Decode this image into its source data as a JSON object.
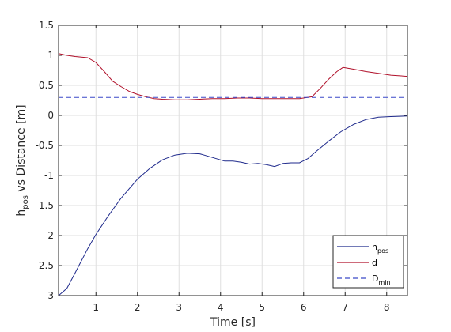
{
  "chart_data": {
    "type": "line",
    "title": "",
    "xlabel": "Time [s]",
    "ylabel_main": "h",
    "ylabel_sub": "pos",
    "ylabel_rest": " vs Distance [m]",
    "xlim": [
      0.1,
      8.5
    ],
    "ylim": [
      -3,
      1.5
    ],
    "xticks": [
      1,
      2,
      3,
      4,
      5,
      6,
      7,
      8
    ],
    "xtick_labels": [
      "1",
      "2",
      "3",
      "4",
      "5",
      "6",
      "7",
      "8"
    ],
    "yticks": [
      1.5,
      1,
      0.5,
      0,
      -0.5,
      -1,
      -1.5,
      -2,
      -2.5,
      -3
    ],
    "ytick_labels": [
      "1.5",
      "1",
      "0.5",
      "0",
      "-0.5",
      "-1",
      "-1.5",
      "-2",
      "-2.5",
      "-3"
    ],
    "grid": true,
    "legend_position": "bottom-right",
    "series": [
      {
        "name": "h",
        "name_sub": "pos",
        "color": "#1f2a8c",
        "style": "solid",
        "x": [
          0.1,
          0.3,
          0.5,
          0.8,
          1.0,
          1.3,
          1.6,
          2.0,
          2.3,
          2.6,
          2.9,
          3.2,
          3.5,
          3.8,
          4.1,
          4.3,
          4.5,
          4.7,
          4.9,
          5.1,
          5.3,
          5.5,
          5.7,
          5.9,
          6.1,
          6.3,
          6.6,
          6.9,
          7.2,
          7.5,
          7.8,
          8.1,
          8.5
        ],
        "y": [
          -3.0,
          -2.88,
          -2.62,
          -2.22,
          -1.98,
          -1.67,
          -1.38,
          -1.06,
          -0.88,
          -0.74,
          -0.66,
          -0.63,
          -0.64,
          -0.7,
          -0.76,
          -0.76,
          -0.78,
          -0.81,
          -0.8,
          -0.82,
          -0.85,
          -0.8,
          -0.79,
          -0.79,
          -0.72,
          -0.6,
          -0.43,
          -0.27,
          -0.15,
          -0.07,
          -0.03,
          -0.02,
          -0.01
        ]
      },
      {
        "name": "d",
        "color": "#b0102a",
        "style": "solid",
        "x": [
          0.1,
          0.3,
          0.5,
          0.8,
          1.0,
          1.2,
          1.4,
          1.6,
          1.8,
          2.0,
          2.2,
          2.4,
          2.6,
          2.9,
          3.2,
          3.5,
          3.8,
          4.1,
          4.4,
          4.7,
          5.0,
          5.3,
          5.6,
          5.9,
          6.2,
          6.4,
          6.6,
          6.8,
          6.95,
          7.2,
          7.5,
          7.8,
          8.1,
          8.5
        ],
        "y": [
          1.03,
          1.0,
          0.98,
          0.96,
          0.88,
          0.73,
          0.57,
          0.48,
          0.4,
          0.35,
          0.31,
          0.28,
          0.27,
          0.26,
          0.26,
          0.27,
          0.28,
          0.28,
          0.29,
          0.29,
          0.28,
          0.28,
          0.28,
          0.28,
          0.31,
          0.45,
          0.6,
          0.73,
          0.8,
          0.77,
          0.73,
          0.7,
          0.67,
          0.65
        ]
      },
      {
        "name": "D",
        "name_sub": "min",
        "color": "#3a49c8",
        "style": "dashed",
        "x": [
          0.1,
          8.5
        ],
        "y": [
          0.3,
          0.3
        ]
      }
    ]
  }
}
